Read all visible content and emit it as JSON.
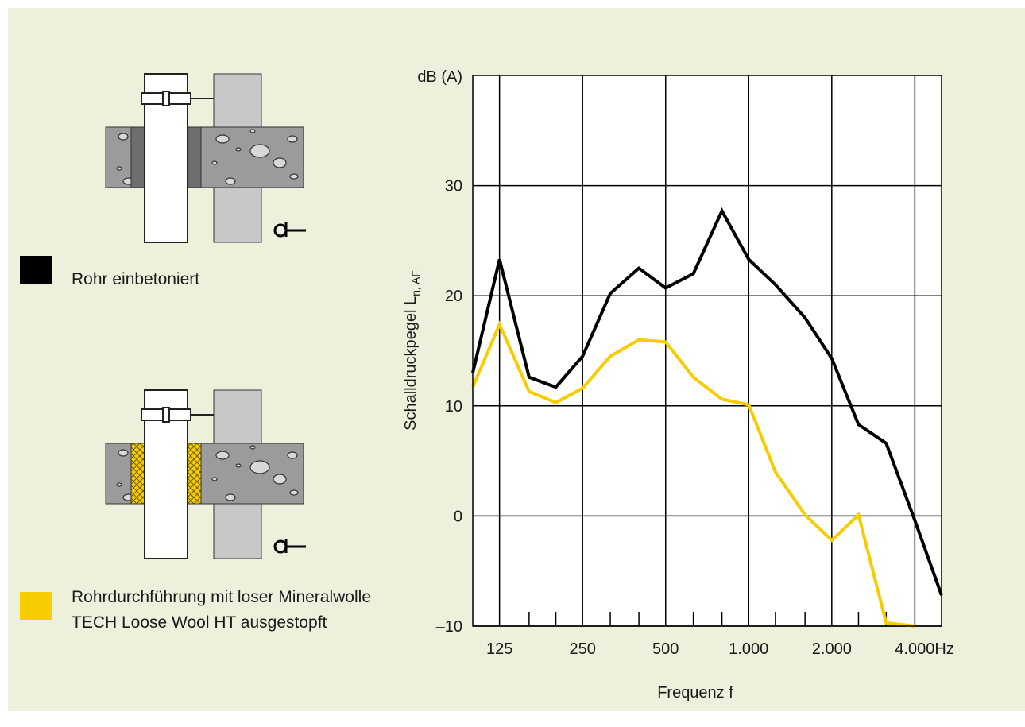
{
  "chart_data": {
    "type": "line",
    "y_unit": "dB (A)",
    "y_label": "Schalldruckpegel L",
    "y_label_sub": "n, AF",
    "x_label": "Frequenz f",
    "x_unit": "Hz",
    "x": [
      100,
      125,
      160,
      200,
      250,
      315,
      400,
      500,
      630,
      800,
      1000,
      1250,
      1600,
      2000,
      2500,
      3150,
      4000,
      5000
    ],
    "series": [
      {
        "name": "Rohr einbetoniert",
        "color": "#000000",
        "values": [
          13.0,
          23.3,
          12.6,
          11.7,
          14.5,
          20.2,
          22.5,
          20.7,
          22.0,
          27.7,
          23.3,
          21.0,
          18.0,
          14.3,
          8.3,
          6.6,
          -0.4,
          -7.2
        ]
      },
      {
        "name": "Rohrdurchführung mit loser Mineralwolle TECH Loose Wool HT ausgestopft",
        "color": "#f7cc00",
        "values": [
          11.7,
          17.4,
          11.3,
          10.3,
          11.6,
          14.5,
          16.0,
          15.8,
          12.6,
          10.6,
          10.1,
          4.0,
          0.1,
          -2.2,
          0.1,
          -9.7,
          -10,
          null
        ]
      }
    ],
    "xlim": [
      100,
      5000
    ],
    "xscale": "log",
    "xticks": [
      125,
      250,
      500,
      {
        "value": 1000,
        "label": "1.000"
      },
      {
        "value": 2000,
        "label": "2.000"
      },
      {
        "value": 4000,
        "label": "4.000"
      }
    ],
    "xminor": [
      160,
      200,
      315,
      400,
      630,
      800,
      1250,
      1600,
      2500,
      3150
    ],
    "ylim": [
      -10,
      40
    ],
    "yticks": [
      {
        "value": -10,
        "label": "–10"
      },
      0,
      10,
      20,
      30
    ],
    "grid": true
  }
}
